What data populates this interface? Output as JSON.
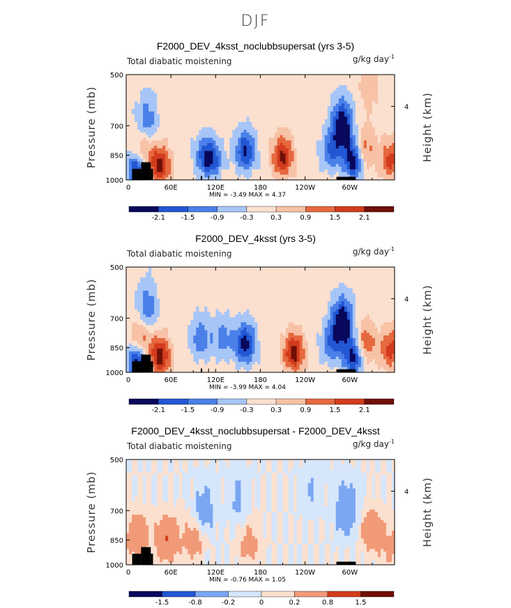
{
  "title": "DJF",
  "colors": {
    "neg": [
      "#08085c",
      "#0a2fb0",
      "#2257d4",
      "#4a80e8",
      "#7aa6f2",
      "#a7c6f7",
      "#d6e6fb"
    ],
    "pos": [
      "#fbe0cf",
      "#f7c2a6",
      "#f19a78",
      "#e6683f",
      "#d23c1c",
      "#a8200d",
      "#701008"
    ],
    "topography": "#000000"
  },
  "panels": [
    {
      "title": "F2000_DEV_4ksst_noclubbsupersat (yrs 3-5)",
      "left_label": "Total diabatic moistening",
      "units_label": "g/kg day",
      "units_exp": "-1",
      "minmax": "MIN =   -3.49   MAX =    4.37",
      "colorbar_labels": [
        "-2.1",
        "-1.5",
        "-0.9",
        "-0.3",
        "0.3",
        "0.9",
        "1.5",
        "2.1"
      ]
    },
    {
      "title": "F2000_DEV_4ksst (yrs 3-5)",
      "left_label": "Total diabatic moistening",
      "units_label": "g/kg day",
      "units_exp": "-1",
      "minmax": "MIN =   -3.99   MAX =    4.04",
      "colorbar_labels": [
        "-2.1",
        "-1.5",
        "-0.9",
        "-0.3",
        "0.3",
        "0.9",
        "1.5",
        "2.1"
      ]
    },
    {
      "title": "F2000_DEV_4ksst_noclubbsupersat - F2000_DEV_4ksst",
      "left_label": "Total diabatic moistening",
      "units_label": "g/kg day",
      "units_exp": "-1",
      "minmax": "MIN =   -0.76   MAX =    1.05",
      "colorbar_labels": [
        "-1.5",
        "-0.8",
        "-0.2",
        "0",
        "0.2",
        "0.8",
        "1.5"
      ]
    }
  ],
  "chart_data": [
    {
      "type": "heatmap",
      "title": "F2000_DEV_4ksst_noclubbsupersat (yrs 3-5)",
      "xlabel": "",
      "ylabel": "Pressure (mb)",
      "y2label": "Height (km)",
      "xticks": [
        "0",
        "60E",
        "120E",
        "180",
        "120W",
        "60W"
      ],
      "yticks": [
        "500",
        "700",
        "850",
        "1000"
      ],
      "y2ticks": [
        "4"
      ],
      "xlim": [
        0,
        360
      ],
      "ylim": [
        1000,
        500
      ],
      "levels": [
        -2.1,
        -1.5,
        -0.9,
        -0.3,
        0.3,
        0.9,
        1.5,
        2.1
      ],
      "min": -3.49,
      "max": 4.37,
      "features": [
        {
          "lon": 15,
          "p": 930,
          "value": -2.5
        },
        {
          "lon": 28,
          "p": 680,
          "value": -1.4
        },
        {
          "lon": 45,
          "p": 910,
          "value": 2.4
        },
        {
          "lon": 22,
          "p": 830,
          "value": 1.5
        },
        {
          "lon": 105,
          "p": 850,
          "value": -1.3
        },
        {
          "lon": 115,
          "p": 880,
          "value": -1.6
        },
        {
          "lon": 160,
          "p": 830,
          "value": -2.2
        },
        {
          "lon": 210,
          "p": 860,
          "value": 2.3
        },
        {
          "lon": 275,
          "p": 830,
          "value": -1.5
        },
        {
          "lon": 290,
          "p": 700,
          "value": -2.8
        },
        {
          "lon": 305,
          "p": 880,
          "value": -2.6
        },
        {
          "lon": 320,
          "p": 820,
          "value": 1.4
        },
        {
          "lon": 355,
          "p": 880,
          "value": 1.7
        },
        {
          "lon": 325,
          "p": 530,
          "value": 0.7
        }
      ]
    },
    {
      "type": "heatmap",
      "title": "F2000_DEV_4ksst (yrs 3-5)",
      "xlabel": "",
      "ylabel": "Pressure (mb)",
      "y2label": "Height (km)",
      "xticks": [
        "0",
        "60E",
        "120E",
        "180",
        "120W",
        "60W"
      ],
      "yticks": [
        "500",
        "700",
        "850",
        "1000"
      ],
      "y2ticks": [
        "4"
      ],
      "xlim": [
        0,
        360
      ],
      "ylim": [
        1000,
        500
      ],
      "levels": [
        -2.1,
        -1.5,
        -0.9,
        -0.3,
        0.3,
        0.9,
        1.5,
        2.1
      ],
      "min": -3.99,
      "max": 4.04,
      "features": [
        {
          "lon": 15,
          "p": 930,
          "value": -2.5
        },
        {
          "lon": 28,
          "p": 660,
          "value": -1.5
        },
        {
          "lon": 45,
          "p": 900,
          "value": 2.5
        },
        {
          "lon": 20,
          "p": 800,
          "value": 1.5
        },
        {
          "lon": 100,
          "p": 800,
          "value": -1.4
        },
        {
          "lon": 130,
          "p": 800,
          "value": -1.2
        },
        {
          "lon": 160,
          "p": 830,
          "value": -2.4
        },
        {
          "lon": 225,
          "p": 880,
          "value": 2.4
        },
        {
          "lon": 275,
          "p": 830,
          "value": -1.4
        },
        {
          "lon": 290,
          "p": 720,
          "value": -2.8
        },
        {
          "lon": 305,
          "p": 900,
          "value": -2.5
        },
        {
          "lon": 320,
          "p": 830,
          "value": 1.6
        },
        {
          "lon": 355,
          "p": 860,
          "value": 1.8
        }
      ]
    },
    {
      "type": "heatmap",
      "title": "F2000_DEV_4ksst_noclubbsupersat - F2000_DEV_4ksst",
      "xlabel": "",
      "ylabel": "Pressure (mb)",
      "y2label": "Height (km)",
      "xticks": [
        "0",
        "60E",
        "120E",
        "180",
        "120W",
        "60W"
      ],
      "yticks": [
        "500",
        "700",
        "850",
        "1000"
      ],
      "y2ticks": [
        "4"
      ],
      "xlim": [
        0,
        360
      ],
      "ylim": [
        1000,
        500
      ],
      "levels": [
        -1.5,
        -0.8,
        -0.2,
        0,
        0.2,
        0.8,
        1.5
      ],
      "min": -0.76,
      "max": 1.05,
      "features": [
        {
          "lon": 55,
          "p": 850,
          "value": 0.8
        },
        {
          "lon": 15,
          "p": 830,
          "value": 0.6
        },
        {
          "lon": 90,
          "p": 850,
          "value": 0.4
        },
        {
          "lon": 105,
          "p": 700,
          "value": -0.4
        },
        {
          "lon": 150,
          "p": 650,
          "value": -0.3
        },
        {
          "lon": 165,
          "p": 870,
          "value": 0.35
        },
        {
          "lon": 295,
          "p": 700,
          "value": -0.6
        },
        {
          "lon": 330,
          "p": 800,
          "value": 0.5
        },
        {
          "lon": 355,
          "p": 900,
          "value": 0.3
        },
        {
          "lon": 250,
          "p": 600,
          "value": -0.2
        }
      ]
    }
  ]
}
